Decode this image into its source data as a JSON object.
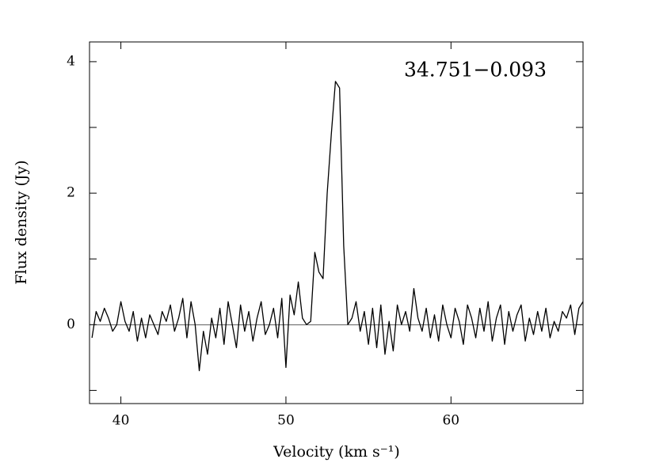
{
  "chart_data": {
    "type": "line",
    "annotation": "34.751−0.093",
    "xlabel": "Velocity (km s⁻¹)",
    "ylabel": "Flux density (Jy)",
    "xlim": [
      38.1,
      68.0
    ],
    "xticks": [
      40,
      50,
      60
    ],
    "ylim": [
      -1.2,
      4.3
    ],
    "yticks": [
      0,
      2,
      4
    ],
    "yminor_ticks": [
      -1,
      1,
      3
    ],
    "zero_line": true,
    "x": [
      38.25,
      38.5,
      38.75,
      39.0,
      39.25,
      39.5,
      39.75,
      40.0,
      40.25,
      40.5,
      40.75,
      41.0,
      41.25,
      41.5,
      41.75,
      42.0,
      42.25,
      42.5,
      42.75,
      43.0,
      43.25,
      43.5,
      43.75,
      44.0,
      44.25,
      44.5,
      44.75,
      45.0,
      45.25,
      45.5,
      45.75,
      46.0,
      46.25,
      46.5,
      46.75,
      47.0,
      47.25,
      47.5,
      47.75,
      48.0,
      48.25,
      48.5,
      48.75,
      49.0,
      49.25,
      49.5,
      49.75,
      50.0,
      50.25,
      50.5,
      50.75,
      51.0,
      51.25,
      51.5,
      51.75,
      52.0,
      52.25,
      52.5,
      52.75,
      53.0,
      53.25,
      53.5,
      53.75,
      54.0,
      54.25,
      54.5,
      54.75,
      55.0,
      55.25,
      55.5,
      55.75,
      56.0,
      56.25,
      56.5,
      56.75,
      57.0,
      57.25,
      57.5,
      57.75,
      58.0,
      58.25,
      58.5,
      58.75,
      59.0,
      59.25,
      59.5,
      59.75,
      60.0,
      60.25,
      60.5,
      60.75,
      61.0,
      61.25,
      61.5,
      61.75,
      62.0,
      62.25,
      62.5,
      62.75,
      63.0,
      63.25,
      63.5,
      63.75,
      64.0,
      64.25,
      64.5,
      64.75,
      65.0,
      65.25,
      65.5,
      65.75,
      66.0,
      66.25,
      66.5,
      66.75,
      67.0,
      67.25,
      67.5,
      67.75,
      68.0
    ],
    "series": [
      {
        "color": "#000000",
        "values": [
          -0.2,
          0.2,
          0.05,
          0.25,
          0.1,
          -0.1,
          0.0,
          0.35,
          0.05,
          -0.1,
          0.2,
          -0.25,
          0.1,
          -0.2,
          0.15,
          0.0,
          -0.15,
          0.2,
          0.05,
          0.3,
          -0.1,
          0.1,
          0.4,
          -0.2,
          0.35,
          0.0,
          -0.7,
          -0.1,
          -0.45,
          0.1,
          -0.2,
          0.25,
          -0.3,
          0.35,
          0.0,
          -0.35,
          0.3,
          -0.1,
          0.2,
          -0.25,
          0.1,
          0.35,
          -0.15,
          0.0,
          0.25,
          -0.2,
          0.4,
          -0.65,
          0.45,
          0.15,
          0.65,
          0.1,
          0.0,
          0.05,
          1.1,
          0.8,
          0.7,
          2.0,
          2.9,
          3.7,
          3.6,
          1.2,
          0.0,
          0.1,
          0.35,
          -0.1,
          0.2,
          -0.3,
          0.25,
          -0.35,
          0.3,
          -0.45,
          0.05,
          -0.4,
          0.3,
          0.0,
          0.2,
          -0.1,
          0.55,
          0.1,
          -0.1,
          0.25,
          -0.2,
          0.15,
          -0.25,
          0.3,
          0.0,
          -0.2,
          0.25,
          0.05,
          -0.3,
          0.3,
          0.1,
          -0.2,
          0.25,
          -0.1,
          0.35,
          -0.25,
          0.1,
          0.3,
          -0.3,
          0.2,
          -0.1,
          0.15,
          0.3,
          -0.25,
          0.1,
          -0.15,
          0.2,
          -0.1,
          0.25,
          -0.2,
          0.05,
          -0.1,
          0.2,
          0.1,
          0.3,
          -0.15,
          0.25,
          0.35
        ]
      }
    ]
  }
}
